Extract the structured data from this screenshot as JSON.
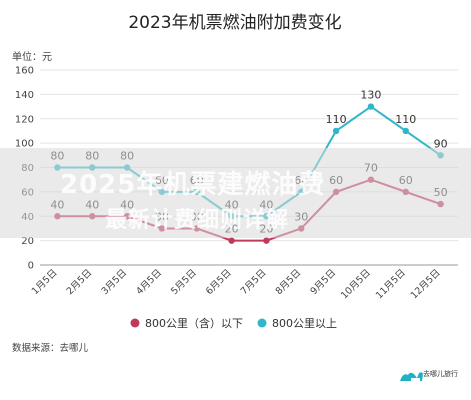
{
  "chart_data": {
    "type": "line",
    "title": "2023年机票燃油附加费变化",
    "unit_label": "单位：元",
    "categories": [
      "1月5日",
      "2月5日",
      "3月5日",
      "4月5日",
      "5月5日",
      "6月5日",
      "7月5日",
      "8月5日",
      "9月5日",
      "10月5日",
      "11月5日",
      "12月5日"
    ],
    "ylim": [
      0,
      160
    ],
    "yticks": [
      0,
      20,
      40,
      60,
      80,
      100,
      120,
      140,
      160
    ],
    "grid": true,
    "legend_position": "bottom",
    "series": [
      {
        "name": "800公里（含）以下",
        "color": "#c0395a",
        "values": [
          40,
          40,
          40,
          30,
          30,
          20,
          20,
          30,
          60,
          70,
          60,
          50
        ]
      },
      {
        "name": "800公里以上",
        "color": "#2fb6c8",
        "values": [
          80,
          80,
          80,
          60,
          60,
          40,
          40,
          60,
          110,
          130,
          110,
          90
        ]
      }
    ]
  },
  "source": "数据来源：去哪儿",
  "overlay": {
    "line1": "2025年机票建燃油费",
    "line2": "最新计费细则详解",
    "band_color": "#d8d8d8"
  },
  "logo": {
    "text": "去哪儿旅行",
    "icon": "camel-icon",
    "color": "#1fb2c2"
  }
}
